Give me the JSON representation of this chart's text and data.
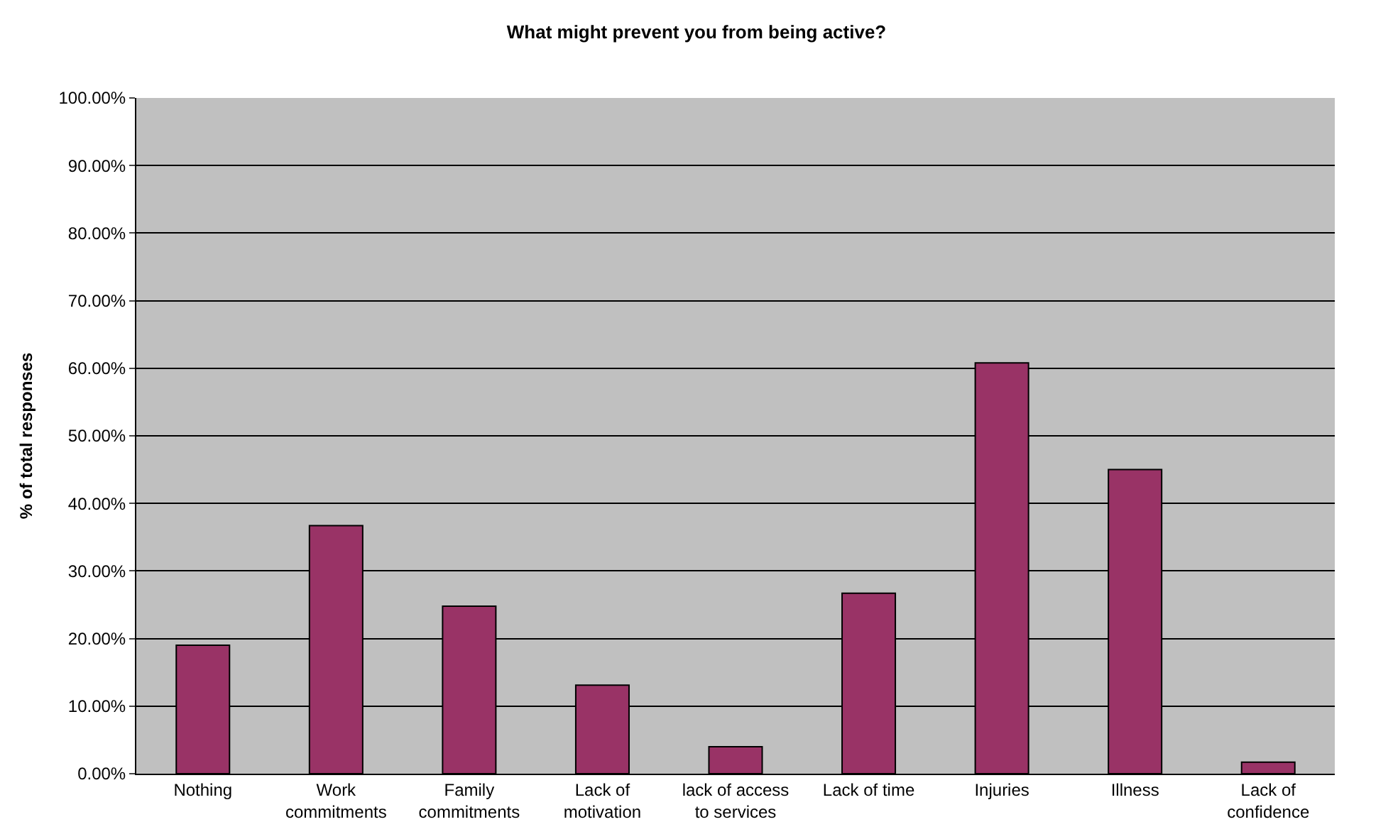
{
  "chart_data": {
    "type": "bar",
    "title": "What might prevent you from being active?",
    "ylabel": "% of total responses",
    "categories": [
      "Nothing",
      "Work commitments",
      "Family commitments",
      "Lack of motivation",
      "lack of access to services",
      "Lack of time",
      "Injuries",
      "Illness",
      "Lack of confidence"
    ],
    "values": [
      19.0,
      36.7,
      24.8,
      13.1,
      4.0,
      26.7,
      60.8,
      45.0,
      1.7
    ],
    "color": "#993366",
    "ylim": [
      0,
      100
    ],
    "yticks": [
      {
        "value": 0,
        "label": "0.00%"
      },
      {
        "value": 10,
        "label": "10.00%"
      },
      {
        "value": 20,
        "label": "20.00%"
      },
      {
        "value": 30,
        "label": "30.00%"
      },
      {
        "value": 40,
        "label": "40.00%"
      },
      {
        "value": 50,
        "label": "50.00%"
      },
      {
        "value": 60,
        "label": "60.00%"
      },
      {
        "value": 70,
        "label": "70.00%"
      },
      {
        "value": 80,
        "label": "80.00%"
      },
      {
        "value": 90,
        "label": "90.00%"
      },
      {
        "value": 100,
        "label": "100.00%"
      }
    ],
    "grid": "y",
    "legend": false
  }
}
